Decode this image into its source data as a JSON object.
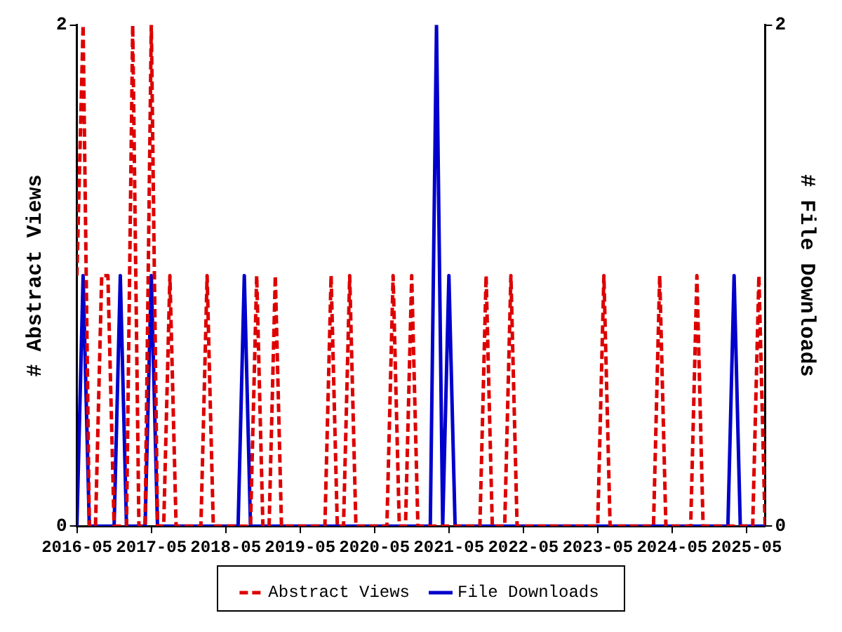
{
  "chart_data": {
    "type": "line",
    "ylabel": "# Abstract Views",
    "y2label": "# File Downloads",
    "x": [
      "2016-05",
      "2016-06",
      "2016-07",
      "2016-08",
      "2016-09",
      "2016-10",
      "2016-11",
      "2016-12",
      "2017-01",
      "2017-02",
      "2017-03",
      "2017-04",
      "2017-05",
      "2017-06",
      "2017-07",
      "2017-08",
      "2017-09",
      "2017-10",
      "2017-11",
      "2017-12",
      "2018-01",
      "2018-02",
      "2018-03",
      "2018-04",
      "2018-05",
      "2018-06",
      "2018-07",
      "2018-08",
      "2018-09",
      "2018-10",
      "2018-11",
      "2018-12",
      "2019-01",
      "2019-02",
      "2019-03",
      "2019-04",
      "2019-05",
      "2019-06",
      "2019-07",
      "2019-08",
      "2019-09",
      "2019-10",
      "2019-11",
      "2019-12",
      "2020-01",
      "2020-02",
      "2020-03",
      "2020-04",
      "2020-05",
      "2020-06",
      "2020-07",
      "2020-08",
      "2020-09",
      "2020-10",
      "2020-11",
      "2020-12",
      "2021-01",
      "2021-02",
      "2021-03",
      "2021-04",
      "2021-05",
      "2021-06",
      "2021-07",
      "2021-08",
      "2021-09",
      "2021-10",
      "2021-11",
      "2021-12",
      "2022-01",
      "2022-02",
      "2022-03",
      "2022-04",
      "2022-05",
      "2022-06",
      "2022-07",
      "2022-08",
      "2022-09",
      "2022-10",
      "2022-11",
      "2022-12",
      "2023-01",
      "2023-02",
      "2023-03",
      "2023-04",
      "2023-05",
      "2023-06",
      "2023-07",
      "2023-08",
      "2023-09",
      "2023-10",
      "2023-11",
      "2023-12",
      "2024-01",
      "2024-02",
      "2024-03",
      "2024-04",
      "2024-05",
      "2024-06",
      "2024-07",
      "2024-08",
      "2024-09",
      "2024-10",
      "2024-11",
      "2024-12",
      "2025-01",
      "2025-02",
      "2025-03",
      "2025-04",
      "2025-05",
      "2025-06",
      "2025-07",
      "2025-08"
    ],
    "series": [
      {
        "name": "Abstract Views",
        "color": "#dd0000",
        "line_style": "dashed",
        "values": [
          1,
          2,
          0,
          0,
          1,
          1,
          0,
          0,
          0,
          2,
          0,
          0,
          2,
          0,
          0,
          1,
          0,
          0,
          0,
          0,
          0,
          1,
          0,
          0,
          0,
          0,
          0,
          0,
          0,
          1,
          0,
          0,
          1,
          0,
          0,
          0,
          0,
          0,
          0,
          0,
          0,
          1,
          0,
          0,
          1,
          0,
          0,
          0,
          0,
          0,
          0,
          1,
          0,
          0,
          1,
          0,
          0,
          0,
          0,
          0,
          0,
          0,
          0,
          0,
          0,
          0,
          1,
          0,
          0,
          0,
          1,
          0,
          0,
          0,
          0,
          0,
          0,
          0,
          0,
          0,
          0,
          0,
          0,
          0,
          0,
          1,
          0,
          0,
          0,
          0,
          0,
          0,
          0,
          0,
          1,
          0,
          0,
          0,
          0,
          0,
          1,
          0,
          0,
          0,
          0,
          0,
          0,
          0,
          0,
          0,
          1,
          0
        ]
      },
      {
        "name": "File Downloads",
        "color": "#0000cc",
        "line_style": "solid",
        "axis": "y2",
        "values": [
          0,
          1,
          0,
          0,
          0,
          0,
          0,
          1,
          0,
          0,
          0,
          0,
          1,
          0,
          0,
          0,
          0,
          0,
          0,
          0,
          0,
          0,
          0,
          0,
          0,
          0,
          0,
          1,
          0,
          0,
          0,
          0,
          0,
          0,
          0,
          0,
          0,
          0,
          0,
          0,
          0,
          0,
          0,
          0,
          0,
          0,
          0,
          0,
          0,
          0,
          0,
          0,
          0,
          0,
          0,
          0,
          0,
          0,
          2,
          0,
          1,
          0,
          0,
          0,
          0,
          0,
          0,
          0,
          0,
          0,
          0,
          0,
          0,
          0,
          0,
          0,
          0,
          0,
          0,
          0,
          0,
          0,
          0,
          0,
          0,
          0,
          0,
          0,
          0,
          0,
          0,
          0,
          0,
          0,
          0,
          0,
          0,
          0,
          0,
          0,
          0,
          0,
          0,
          0,
          0,
          0,
          1,
          0,
          0,
          0,
          0,
          0
        ]
      }
    ],
    "xlim": [
      "2016-05",
      "2025-08"
    ],
    "xticks": [
      "2016-05",
      "2017-05",
      "2018-05",
      "2019-05",
      "2020-05",
      "2021-05",
      "2022-05",
      "2023-05",
      "2024-05",
      "2025-05"
    ],
    "ylim": [
      0,
      2
    ],
    "yticks": [
      0,
      2
    ],
    "y2lim": [
      0,
      2
    ],
    "y2ticks": [
      0,
      2
    ],
    "grid": false,
    "legend": "bottom",
    "marker": "none"
  }
}
